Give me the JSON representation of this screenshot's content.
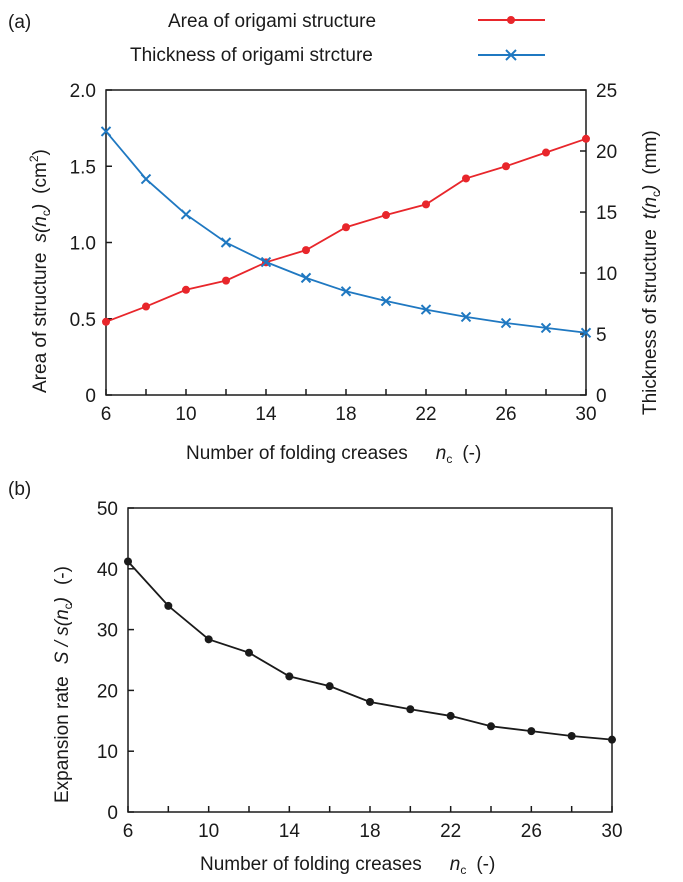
{
  "panel_a_label": "(a)",
  "panel_b_label": "(b)",
  "chart_data": [
    {
      "panel": "(a)",
      "type": "line",
      "x": [
        6,
        8,
        10,
        12,
        14,
        16,
        18,
        20,
        22,
        24,
        26,
        28,
        30
      ],
      "xlabel": "Number of folding creases",
      "xlabel_symbol": "n",
      "xlabel_symbol_sub": "c",
      "xlabel_unit": "(-)",
      "xticks": [
        "6",
        "10",
        "14",
        "18",
        "22",
        "26",
        "30"
      ],
      "xlim": [
        6,
        30
      ],
      "ylabel_left": "Area of structure",
      "ylabel_left_symbol": "s(n",
      "ylabel_left_symbol_sub": "c",
      "ylabel_left_symbol_end": ")",
      "ylabel_left_unit": "(cm",
      "ylabel_left_unit_sup": "2",
      "ylabel_left_unit_end": ")",
      "yticks_left": [
        "0",
        "0.5",
        "1.0",
        "1.5",
        "2.0"
      ],
      "ylim_left": [
        0,
        2.0
      ],
      "ylabel_right": "Thickness of structure",
      "ylabel_right_symbol": "t(n",
      "ylabel_right_symbol_sub": "c",
      "ylabel_right_symbol_end": ")",
      "ylabel_right_unit": "(mm)",
      "yticks_right": [
        "0",
        "5",
        "10",
        "15",
        "20",
        "25"
      ],
      "ylim_right": [
        0,
        25
      ],
      "legend_position": "top-right, above plot",
      "grid": false,
      "series": [
        {
          "name": "Area of origami structure",
          "axis": "left",
          "marker": "circle",
          "color": "#e8262b",
          "values": [
            0.48,
            0.58,
            0.69,
            0.75,
            0.87,
            0.95,
            1.1,
            1.18,
            1.25,
            1.42,
            1.5,
            1.59,
            1.68
          ]
        },
        {
          "name": "Thickness of origami strcture",
          "axis": "right",
          "marker": "x",
          "color": "#1f78c1",
          "values": [
            21.6,
            17.7,
            14.8,
            12.5,
            10.9,
            9.6,
            8.5,
            7.7,
            7.0,
            6.4,
            5.9,
            5.5,
            5.1
          ]
        }
      ]
    },
    {
      "panel": "(b)",
      "type": "line",
      "x": [
        6,
        8,
        10,
        12,
        14,
        16,
        18,
        20,
        22,
        24,
        26,
        28,
        30
      ],
      "xlabel": "Number of folding creases",
      "xlabel_symbol": "n",
      "xlabel_symbol_sub": "c",
      "xlabel_unit": "(-)",
      "xticks": [
        "6",
        "10",
        "14",
        "18",
        "22",
        "26",
        "30"
      ],
      "xlim": [
        6,
        30
      ],
      "ylabel": "Expansion rate",
      "ylabel_symbol": "S / s(n",
      "ylabel_symbol_sub": "c",
      "ylabel_symbol_end": ")",
      "ylabel_unit": "(-)",
      "yticks": [
        "0",
        "10",
        "20",
        "30",
        "40",
        "50"
      ],
      "ylim": [
        0,
        50
      ],
      "grid": false,
      "series": [
        {
          "marker": "circle",
          "color": "#1a1a1a",
          "values": [
            41.2,
            33.9,
            28.4,
            26.2,
            22.3,
            20.7,
            18.1,
            16.9,
            15.8,
            14.1,
            13.3,
            12.5,
            11.9
          ]
        }
      ]
    }
  ]
}
